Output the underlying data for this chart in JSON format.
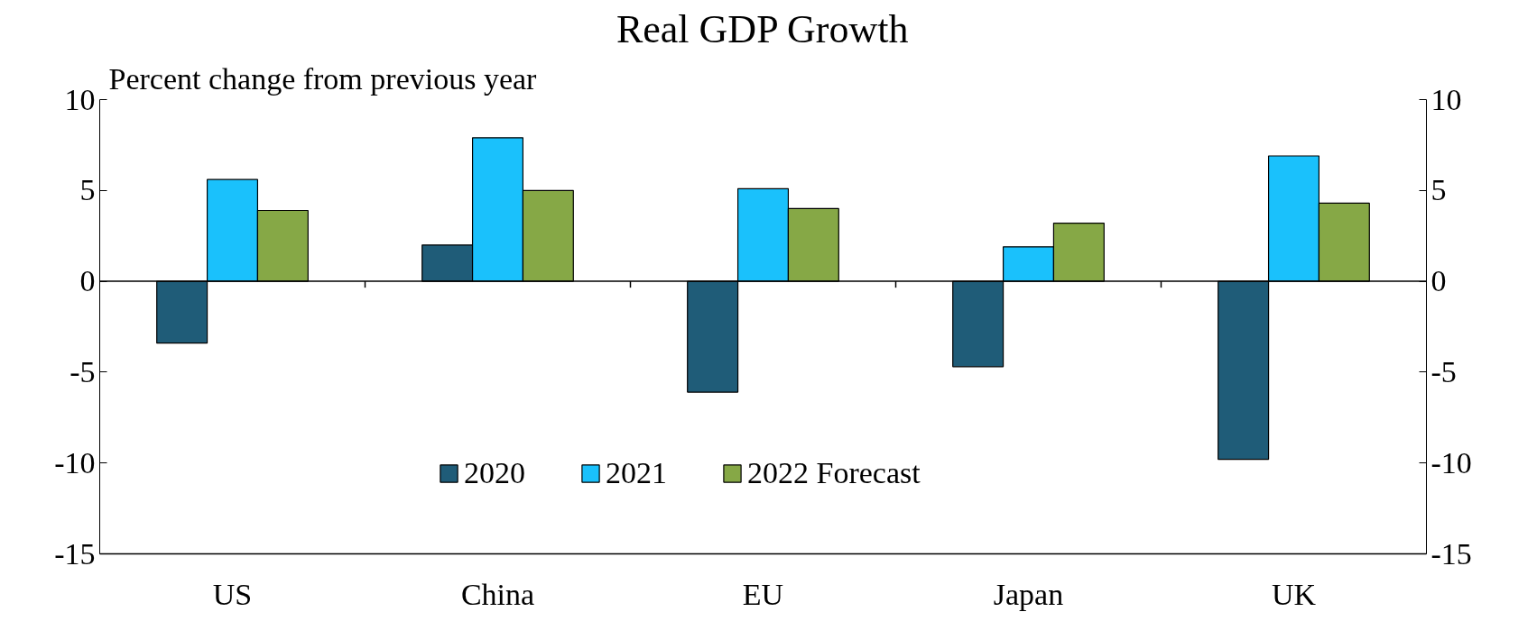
{
  "chart_data": {
    "type": "bar",
    "title": "Real GDP Growth",
    "ylabel": "Percent change from previous year",
    "categories": [
      "US",
      "China",
      "EU",
      "Japan",
      "UK"
    ],
    "series": [
      {
        "name": "2020",
        "color": "#1f5c78",
        "values": [
          -3.4,
          2.0,
          -6.1,
          -4.7,
          -9.8
        ]
      },
      {
        "name": "2021",
        "color": "#1ac1fc",
        "values": [
          5.6,
          7.9,
          5.1,
          1.9,
          6.9
        ]
      },
      {
        "name": "2022 Forecast",
        "color": "#86a846",
        "values": [
          3.9,
          5.0,
          4.0,
          3.2,
          4.3
        ]
      }
    ],
    "ylim": [
      -15,
      10
    ],
    "yticks": [
      -15,
      -10,
      -5,
      0,
      5,
      10
    ],
    "y2lim": [
      -15,
      10
    ],
    "y2ticks": [
      -15,
      -10,
      -5,
      0,
      5,
      10
    ],
    "ref_lines": [
      {
        "axis": "y",
        "value": 0,
        "color": "#000000"
      }
    ],
    "legend": "bottom"
  }
}
